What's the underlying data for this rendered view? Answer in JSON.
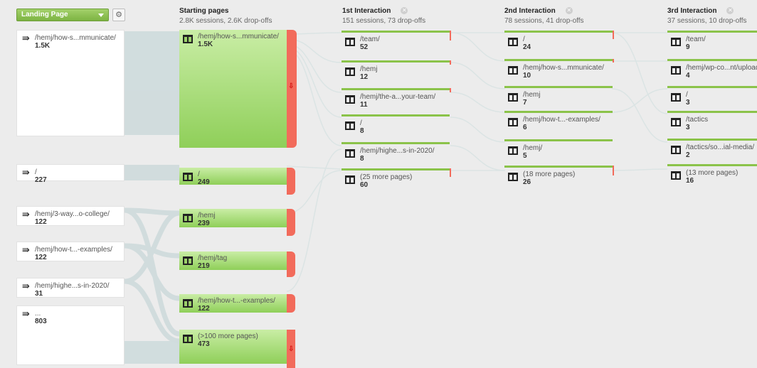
{
  "toolbar": {
    "dimension_label": "Landing Page",
    "settings_icon": "gear-icon"
  },
  "columns": [
    {
      "title": "Starting pages",
      "stats": "2.8K sessions, 2.6K drop-offs",
      "closable": false
    },
    {
      "title": "1st Interaction",
      "stats": "151 sessions, 73 drop-offs",
      "closable": true
    },
    {
      "title": "2nd Interaction",
      "stats": "78 sessions, 41 drop-offs",
      "closable": true
    },
    {
      "title": "3rd Interaction",
      "stats": "37 sessions, 10 drop-offs",
      "closable": true
    }
  ],
  "landing_pages": [
    {
      "label": "/hemj/how-s...mmunicate/",
      "count": "1.5K"
    },
    {
      "label": "/",
      "count": "227"
    },
    {
      "label": "/hemj/3-way...o-college/",
      "count": "122"
    },
    {
      "label": "/hemj/how-t...-examples/",
      "count": "122"
    },
    {
      "label": "/hemj/highe...s-in-2020/",
      "count": "31"
    },
    {
      "label": "...",
      "count": "803"
    }
  ],
  "starting_pages": [
    {
      "label": "/hemj/how-s...mmunicate/",
      "count": "1.5K"
    },
    {
      "label": "/",
      "count": "249"
    },
    {
      "label": "/hemj",
      "count": "239"
    },
    {
      "label": "/hemj/tag",
      "count": "219"
    },
    {
      "label": "/hemj/how-t...-examples/",
      "count": "122"
    },
    {
      "label": "(>100 more pages)",
      "count": "473"
    }
  ],
  "interaction_1": [
    {
      "label": "/team/",
      "count": "52"
    },
    {
      "label": "/hemj",
      "count": "12"
    },
    {
      "label": "/hemj/the-a...your-team/",
      "count": "11"
    },
    {
      "label": "/",
      "count": "8"
    },
    {
      "label": "/hemj/highe...s-in-2020/",
      "count": "8"
    },
    {
      "label": "(25 more pages)",
      "count": "60"
    }
  ],
  "interaction_2": [
    {
      "label": "/",
      "count": "24"
    },
    {
      "label": "/hemj/how-s...mmunicate/",
      "count": "10"
    },
    {
      "label": "/hemj",
      "count": "7"
    },
    {
      "label": "/hemj/how-t...-examples/",
      "count": "6"
    },
    {
      "label": "/hemj/",
      "count": "5"
    },
    {
      "label": "(18 more pages)",
      "count": "26"
    }
  ],
  "interaction_3": [
    {
      "label": "/team/",
      "count": "9"
    },
    {
      "label": "/hemj/wp-co...nt/upload",
      "count": "4"
    },
    {
      "label": "/",
      "count": "3"
    },
    {
      "label": "/tactics",
      "count": "3"
    },
    {
      "label": "/tactics/so...ial-media/",
      "count": "2"
    },
    {
      "label": "(13 more pages)",
      "count": "16"
    }
  ],
  "colors": {
    "node_green": "#8fcf59",
    "node_green_light": "#c9eda5",
    "dropoff_red": "#f26b5b",
    "flow_gray": "#d3dfe0",
    "background": "#ececec"
  }
}
